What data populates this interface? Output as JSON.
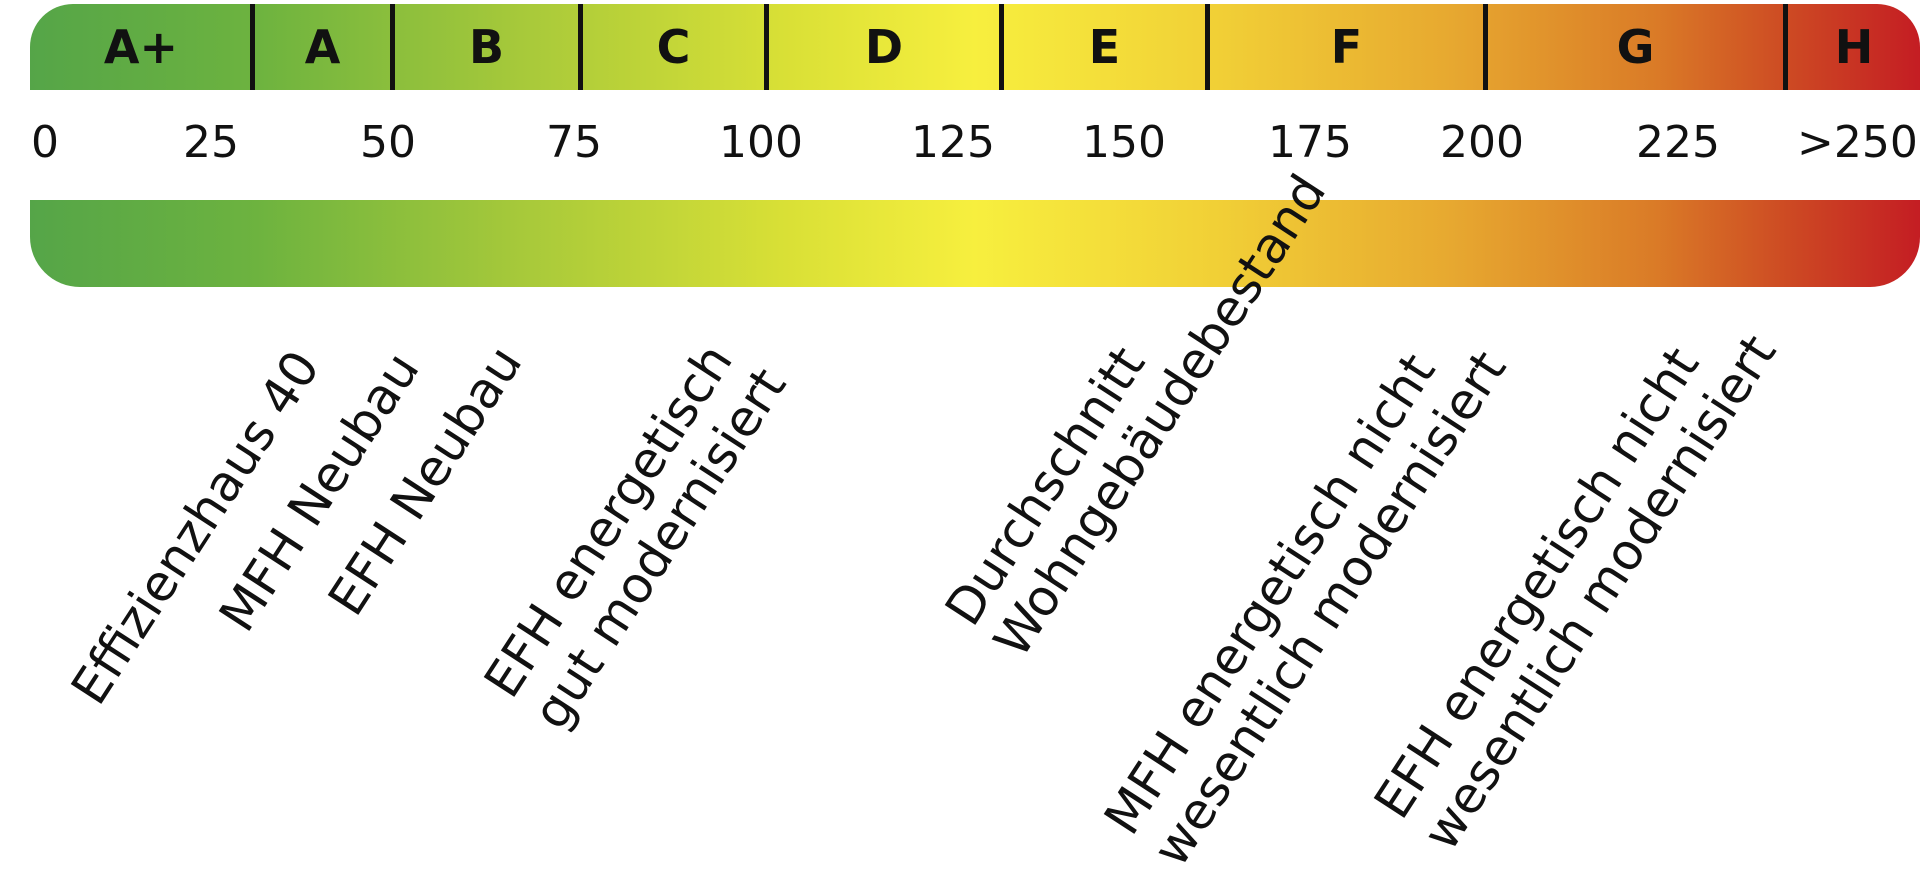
{
  "efficiency_classes": [
    {
      "label": "A+",
      "color": "#5aa747"
    },
    {
      "label": "A",
      "color": "#77b63e"
    },
    {
      "label": "B",
      "color": "#a3c83a"
    },
    {
      "label": "C",
      "color": "#d2dd37"
    },
    {
      "label": "D",
      "color": "#f5ee3e"
    },
    {
      "label": "E",
      "color": "#f2d63a"
    },
    {
      "label": "F",
      "color": "#e8b132"
    },
    {
      "label": "G",
      "color": "#d97c27"
    },
    {
      "label": "H",
      "color": "#c41d23"
    }
  ],
  "scale_values": [
    "0",
    "25",
    "50",
    "75",
    "100",
    "125",
    "150",
    "175",
    "200",
    "225",
    ">250"
  ],
  "building_types": [
    {
      "lines": [
        "Effizienzhaus 40"
      ]
    },
    {
      "lines": [
        "MFH Neubau"
      ]
    },
    {
      "lines": [
        "EFH Neubau"
      ]
    },
    {
      "lines": [
        "EFH energetisch",
        "gut modernisiert"
      ]
    },
    {
      "lines": [
        "Durchschnitt",
        "Wohngebäudebestand"
      ]
    },
    {
      "lines": [
        "MFH energetisch nicht",
        "wesentlich modernisiert"
      ]
    },
    {
      "lines": [
        "EFH energetisch nicht",
        "wesentlich modernisiert"
      ]
    }
  ]
}
